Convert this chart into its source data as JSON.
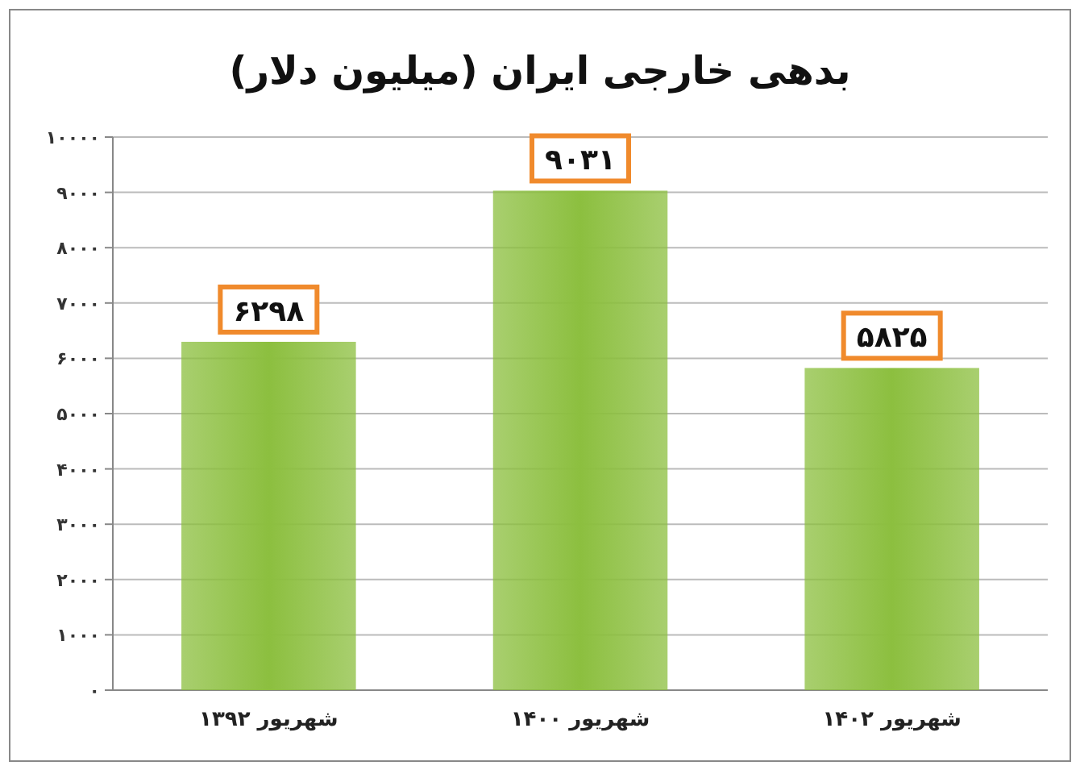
{
  "chart_data": {
    "type": "bar",
    "title": "بدهی خارجی ایران (میلیون دلار)",
    "categories": [
      "شهریور ۱۳۹۲",
      "شهریور ۱۴۰۰",
      "شهریور ۱۴۰۲"
    ],
    "values": [
      6298,
      9031,
      5825
    ],
    "value_labels": [
      "۶۲۹۸",
      "۹۰۳۱",
      "۵۸۲۵"
    ],
    "color": "#8cbf3f",
    "ylim": [
      0,
      10000
    ],
    "yticks": [
      {
        "value": 0,
        "label": "۰"
      },
      {
        "value": 1000,
        "label": "۱۰۰۰"
      },
      {
        "value": 2000,
        "label": "۲۰۰۰"
      },
      {
        "value": 3000,
        "label": "۳۰۰۰"
      },
      {
        "value": 4000,
        "label": "۴۰۰۰"
      },
      {
        "value": 5000,
        "label": "۵۰۰۰"
      },
      {
        "value": 6000,
        "label": "۶۰۰۰"
      },
      {
        "value": 7000,
        "label": "۷۰۰۰"
      },
      {
        "value": 8000,
        "label": "۸۰۰۰"
      },
      {
        "value": 9000,
        "label": "۹۰۰۰"
      },
      {
        "value": 10000,
        "label": "۱۰۰۰۰"
      }
    ],
    "grid": "y"
  }
}
